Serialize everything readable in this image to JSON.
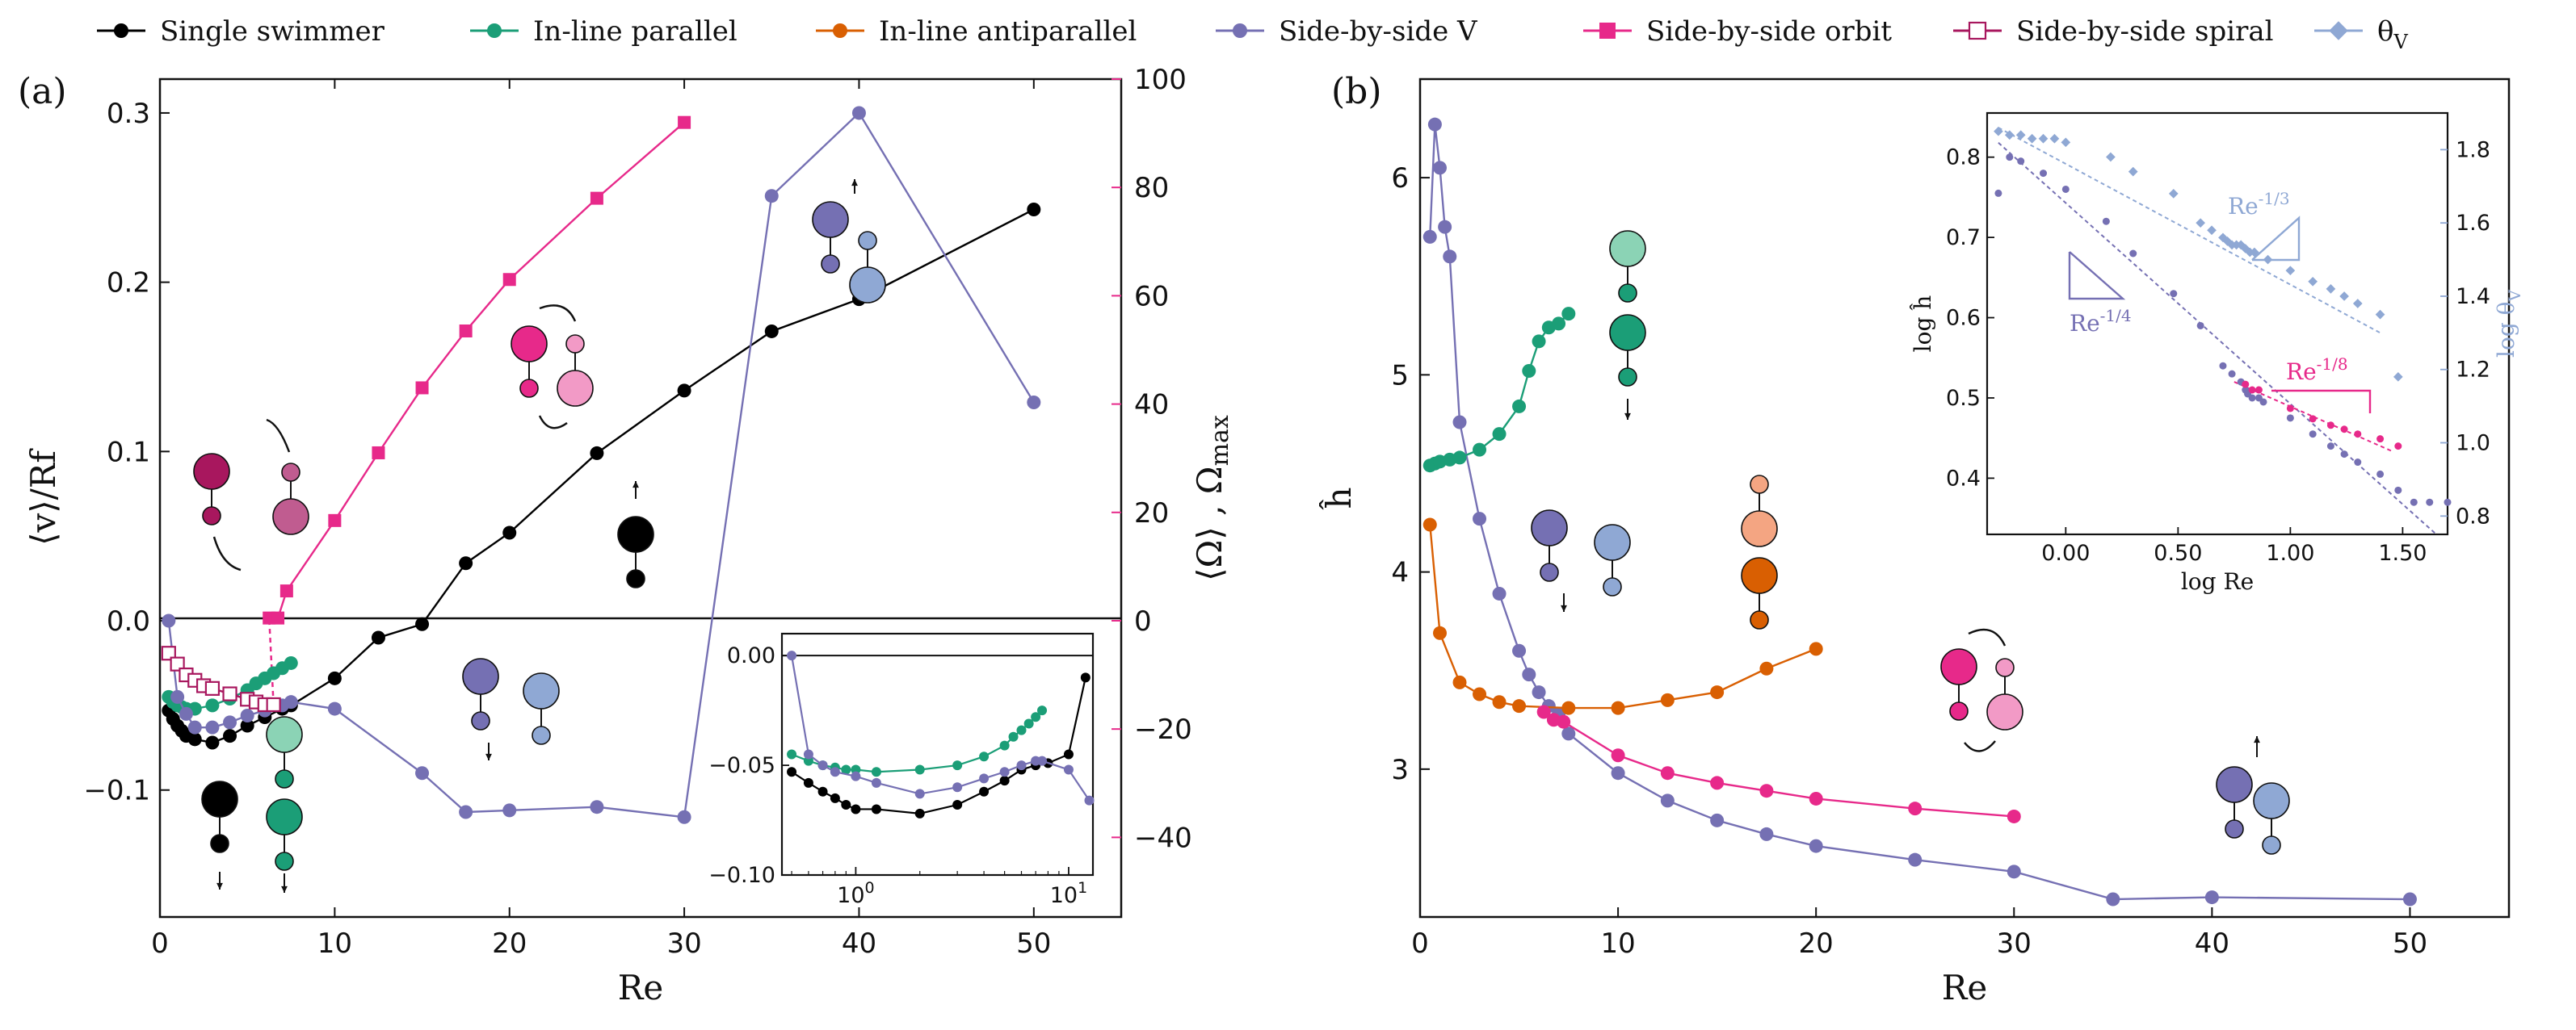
{
  "colors": {
    "single": "#000000",
    "inline_parallel": "#1b9e77",
    "inline_antiparallel": "#d95f02",
    "side_v": "#7570b3",
    "side_orbit": "#e7298a",
    "side_spiral": "#a8175e",
    "theta": "#8fa8d4"
  },
  "legend": [
    {
      "key": "single",
      "label": "Single swimmer",
      "marker": "circle"
    },
    {
      "key": "inline_parallel",
      "label": "In-line parallel",
      "marker": "circle"
    },
    {
      "key": "inline_antiparallel",
      "label": "In-line antiparallel",
      "marker": "circle"
    },
    {
      "key": "side_v",
      "label": "Side-by-side V",
      "marker": "circle"
    },
    {
      "key": "side_orbit",
      "label": "Side-by-side orbit",
      "marker": "square"
    },
    {
      "key": "side_spiral",
      "label": "Side-by-side spiral",
      "marker": "open-square"
    },
    {
      "key": "theta",
      "label": "θ",
      "sub": "V",
      "marker": "diamond"
    }
  ],
  "chart_data": [
    {
      "panel": "(a)",
      "type": "line",
      "xlabel": "Re",
      "ylabel": "⟨v⟩/Rf",
      "ylabel_right": "⟨Ω⟩ , Ω",
      "ylabel_right_sub": "max",
      "xlim": [
        0,
        55
      ],
      "ylim": [
        -0.175,
        0.32
      ],
      "ylim_right": [
        -54.7,
        100
      ],
      "xticks": [
        0,
        10,
        20,
        30,
        40,
        50
      ],
      "yticks": [
        -0.1,
        0.0,
        0.1,
        0.2,
        0.3
      ],
      "yticks_right": [
        -40,
        -20,
        0,
        20,
        40,
        60,
        80,
        100
      ],
      "series": [
        {
          "key": "single",
          "axis": "left",
          "x": [
            0.5,
            0.75,
            1,
            1.25,
            1.5,
            2,
            3,
            4,
            5,
            6,
            7,
            7.5,
            10,
            12.5,
            15,
            17.5,
            20,
            25,
            30,
            35,
            40,
            50
          ],
          "y": [
            -0.053,
            -0.058,
            -0.062,
            -0.065,
            -0.068,
            -0.07,
            -0.072,
            -0.068,
            -0.062,
            -0.057,
            -0.052,
            -0.05,
            -0.034,
            -0.01,
            -0.002,
            0.034,
            0.052,
            0.099,
            0.136,
            0.171,
            0.19,
            0.243
          ]
        },
        {
          "key": "inline_parallel",
          "axis": "left",
          "x": [
            0.5,
            0.75,
            1,
            1.25,
            1.5,
            2,
            3,
            4,
            5,
            5.5,
            6,
            6.5,
            7,
            7.5
          ],
          "y": [
            -0.045,
            -0.048,
            -0.05,
            -0.051,
            -0.052,
            -0.052,
            -0.05,
            -0.046,
            -0.041,
            -0.037,
            -0.034,
            -0.031,
            -0.028,
            -0.025
          ]
        },
        {
          "key": "side_v",
          "axis": "left",
          "x": [
            0.5,
            1,
            1.5,
            2,
            3,
            4,
            5,
            6,
            7,
            7.5,
            10,
            15,
            17.5,
            20,
            25,
            30,
            35,
            40,
            50
          ],
          "y": [
            0.0,
            -0.045,
            -0.055,
            -0.063,
            -0.063,
            -0.06,
            -0.056,
            -0.053,
            -0.05,
            -0.048,
            -0.052,
            -0.09,
            -0.113,
            -0.112,
            -0.11,
            -0.116,
            0.251,
            0.3,
            0.129
          ]
        },
        {
          "key": "side_orbit",
          "axis": "right",
          "x": [
            6.25,
            6.75,
            7.25,
            10,
            12.5,
            15,
            17.5,
            20,
            25,
            30
          ],
          "y": [
            0.5,
            0.5,
            5.5,
            18.5,
            31,
            43,
            53.5,
            63,
            78,
            92
          ]
        },
        {
          "key": "side_spiral",
          "axis": "right",
          "x": [
            0.5,
            1,
            1.5,
            2,
            2.5,
            3,
            4,
            5,
            5.5,
            6,
            6.5
          ],
          "y": [
            -6,
            -8,
            -10,
            -11,
            -12,
            -12.5,
            -13.5,
            -14.5,
            -15,
            -15.5,
            -15.5
          ]
        }
      ],
      "spiral_to_orbit_link": {
        "x": [
          6.5,
          6.25
        ],
        "y": [
          -15.5,
          0.5
        ]
      }
    },
    {
      "panel": "(a) inset",
      "type": "line",
      "xscale": "log",
      "xlim": [
        0.45,
        13
      ],
      "ylim": [
        -0.1,
        0.01
      ],
      "xtick_labels": [
        "10",
        "10"
      ],
      "xtick_exps": [
        "0",
        "1"
      ],
      "yticks": [
        -0.1,
        -0.05,
        0.0
      ],
      "ytick_labels": [
        "−0.10",
        "−0.05",
        "0.00"
      ],
      "series": [
        {
          "key": "single",
          "x": [
            0.5,
            0.6,
            0.7,
            0.8,
            0.9,
            1,
            1.25,
            2,
            3,
            4,
            5,
            6,
            7,
            8,
            10,
            12
          ],
          "y": [
            -0.053,
            -0.058,
            -0.062,
            -0.065,
            -0.068,
            -0.07,
            -0.07,
            -0.072,
            -0.068,
            -0.062,
            -0.057,
            -0.052,
            -0.05,
            -0.049,
            -0.045,
            -0.01
          ]
        },
        {
          "key": "inline_parallel",
          "x": [
            0.5,
            0.6,
            0.7,
            0.8,
            0.9,
            1,
            1.25,
            2,
            3,
            4,
            5,
            5.5,
            6,
            6.5,
            7,
            7.5
          ],
          "y": [
            -0.045,
            -0.048,
            -0.05,
            -0.051,
            -0.052,
            -0.052,
            -0.053,
            -0.052,
            -0.05,
            -0.046,
            -0.041,
            -0.037,
            -0.034,
            -0.031,
            -0.028,
            -0.025
          ]
        },
        {
          "key": "side_v",
          "x": [
            0.5,
            0.6,
            0.7,
            0.8,
            1,
            1.25,
            2,
            3,
            4,
            5,
            6,
            7,
            7.5,
            10,
            12.5
          ],
          "y": [
            0.0,
            -0.045,
            -0.05,
            -0.053,
            -0.055,
            -0.058,
            -0.063,
            -0.06,
            -0.056,
            -0.053,
            -0.05,
            -0.048,
            -0.048,
            -0.052,
            -0.066
          ]
        }
      ]
    },
    {
      "panel": "(b)",
      "type": "line",
      "xlabel": "Re",
      "ylabel": "ĥ",
      "xlim": [
        0,
        55
      ],
      "ylim": [
        2.25,
        6.5
      ],
      "xticks": [
        0,
        10,
        20,
        30,
        40,
        50
      ],
      "yticks": [
        3,
        4,
        5,
        6
      ],
      "series": [
        {
          "key": "side_v",
          "x": [
            0.5,
            0.75,
            1,
            1.25,
            1.5,
            2,
            3,
            4,
            5,
            5.5,
            6,
            6.5,
            7,
            7.5,
            10,
            12.5,
            15,
            17.5,
            20,
            25,
            30,
            35,
            40,
            50
          ],
          "y": [
            5.7,
            6.27,
            6.05,
            5.75,
            5.6,
            4.76,
            4.27,
            3.89,
            3.6,
            3.48,
            3.39,
            3.32,
            3.28,
            3.18,
            2.98,
            2.84,
            2.74,
            2.67,
            2.61,
            2.54,
            2.48,
            2.34,
            2.35,
            2.34
          ]
        },
        {
          "key": "inline_parallel",
          "x": [
            0.5,
            0.75,
            1,
            1.5,
            2,
            3,
            4,
            5,
            5.5,
            6,
            6.5,
            7,
            7.5
          ],
          "y": [
            4.54,
            4.55,
            4.56,
            4.57,
            4.58,
            4.62,
            4.7,
            4.84,
            5.02,
            5.17,
            5.24,
            5.26,
            5.31
          ]
        },
        {
          "key": "inline_antiparallel",
          "x": [
            0.5,
            1,
            2,
            3,
            4,
            5,
            7.5,
            10,
            12.5,
            15,
            17.5,
            20
          ],
          "y": [
            4.24,
            3.69,
            3.44,
            3.38,
            3.34,
            3.32,
            3.31,
            3.31,
            3.35,
            3.39,
            3.51,
            3.61
          ]
        },
        {
          "key": "side_orbit",
          "x": [
            6.25,
            6.75,
            7.25,
            10,
            12.5,
            15,
            17.5,
            20,
            25,
            30
          ],
          "y": [
            3.29,
            3.25,
            3.24,
            3.07,
            2.98,
            2.93,
            2.89,
            2.85,
            2.8,
            2.76
          ]
        }
      ]
    },
    {
      "panel": "(b) inset",
      "type": "scatter",
      "xlabel": "log Re",
      "ylabel": "log ĥ",
      "ylabel_right": "log θ",
      "ylabel_right_sub": "V",
      "xlim": [
        -0.35,
        1.7
      ],
      "ylim": [
        0.33,
        0.855
      ],
      "ylim_right": [
        0.75,
        1.9
      ],
      "xticks": [
        0.0,
        0.5,
        1.0,
        1.5
      ],
      "xtick_labels": [
        "0.00",
        "0.50",
        "1.00",
        "1.50"
      ],
      "yticks": [
        0.4,
        0.5,
        0.6,
        0.7,
        0.8
      ],
      "yticks_right": [
        0.8,
        1.0,
        1.2,
        1.4,
        1.6,
        1.8
      ],
      "series": [
        {
          "key": "side_v",
          "axis": "left",
          "x": [
            -0.3,
            -0.25,
            -0.2,
            -0.1,
            0.0,
            0.18,
            0.3,
            0.48,
            0.6,
            0.7,
            0.74,
            0.78,
            0.8,
            0.81,
            0.83,
            0.86,
            0.88,
            1.0,
            1.1,
            1.18,
            1.24,
            1.3,
            1.4,
            1.48,
            1.55,
            1.62,
            1.7
          ],
          "y": [
            0.755,
            0.8,
            0.795,
            0.78,
            0.76,
            0.72,
            0.68,
            0.63,
            0.59,
            0.54,
            0.53,
            0.52,
            0.51,
            0.505,
            0.5,
            0.5,
            0.495,
            0.475,
            0.455,
            0.44,
            0.43,
            0.42,
            0.405,
            0.385,
            0.37,
            0.37,
            0.37
          ]
        },
        {
          "key": "side_orbit",
          "axis": "left",
          "x": [
            0.8,
            0.83,
            0.86,
            1.0,
            1.1,
            1.18,
            1.24,
            1.3,
            1.4,
            1.48
          ],
          "y": [
            0.517,
            0.51,
            0.51,
            0.487,
            0.474,
            0.466,
            0.461,
            0.455,
            0.449,
            0.44
          ]
        },
        {
          "key": "theta",
          "axis": "right",
          "x": [
            -0.3,
            -0.25,
            -0.2,
            -0.15,
            -0.1,
            -0.05,
            0.0,
            0.2,
            0.3,
            0.48,
            0.6,
            0.65,
            0.7,
            0.72,
            0.74,
            0.76,
            0.78,
            0.8,
            0.82,
            0.84,
            0.9,
            1.0,
            1.1,
            1.18,
            1.24,
            1.3,
            1.4,
            1.48
          ],
          "y": [
            1.85,
            1.84,
            1.84,
            1.83,
            1.83,
            1.83,
            1.82,
            1.78,
            1.74,
            1.68,
            1.6,
            1.58,
            1.56,
            1.55,
            1.54,
            1.54,
            1.54,
            1.53,
            1.52,
            1.52,
            1.5,
            1.47,
            1.44,
            1.42,
            1.4,
            1.38,
            1.35,
            1.18
          ]
        }
      ],
      "fits": [
        {
          "key": "side_v",
          "axis": "left",
          "x": [
            -0.3,
            1.65
          ],
          "y": [
            0.818,
            0.33
          ]
        },
        {
          "key": "side_orbit",
          "axis": "left",
          "x": [
            0.75,
            1.45
          ],
          "y": [
            0.52,
            0.434
          ]
        },
        {
          "key": "theta",
          "axis": "right",
          "x": [
            -0.3,
            1.4
          ],
          "y": [
            1.86,
            1.3
          ]
        }
      ]
    }
  ],
  "inset_annotations": [
    {
      "base": "Re",
      "exp": "-1/3",
      "key": "theta"
    },
    {
      "base": "Re",
      "exp": "-1/4",
      "key": "side_v"
    },
    {
      "base": "Re",
      "exp": "-1/8",
      "key": "side_orbit"
    }
  ]
}
